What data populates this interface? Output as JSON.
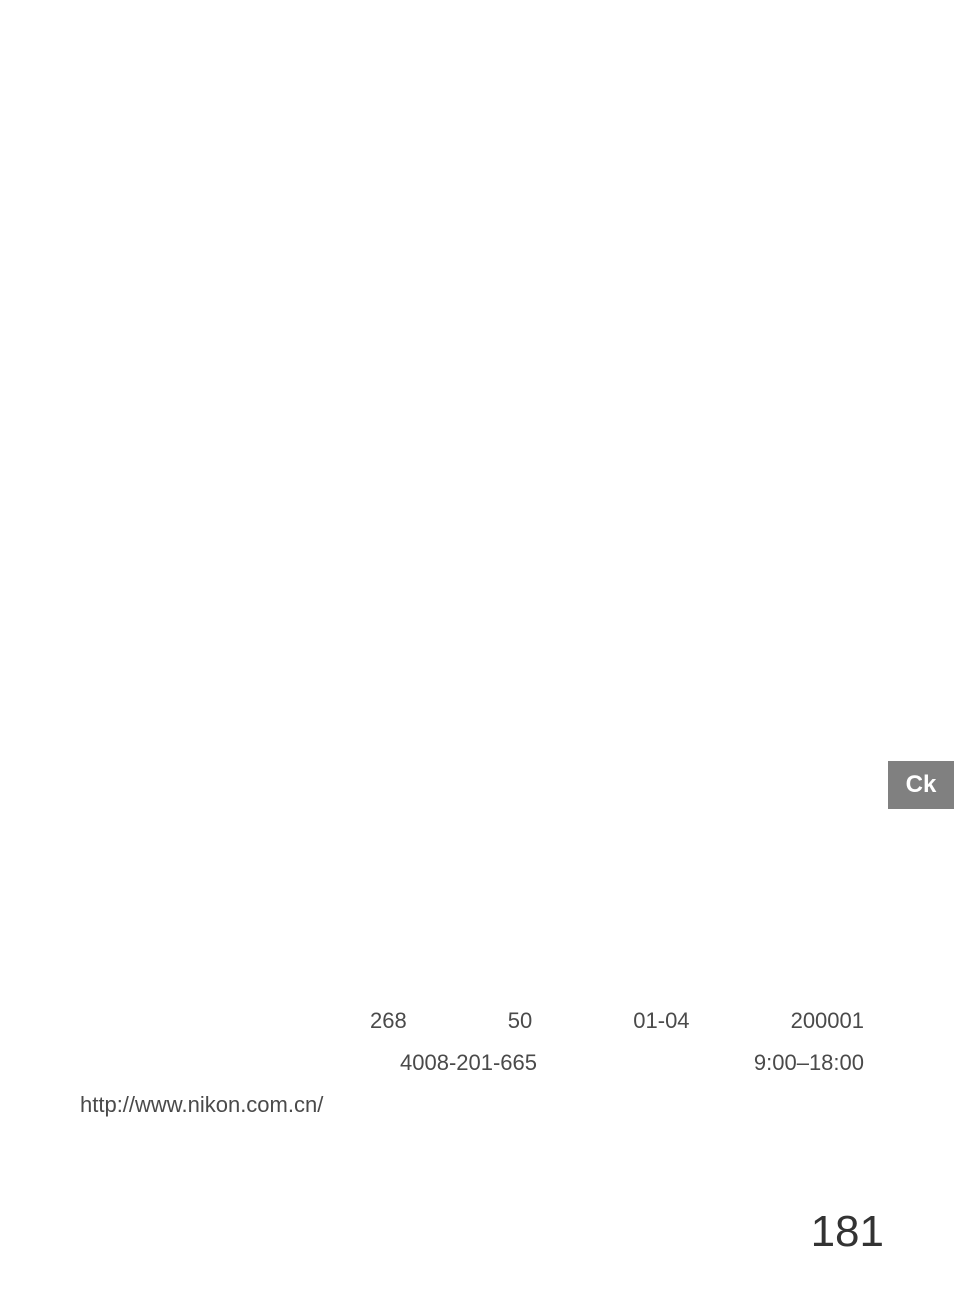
{
  "tab": {
    "label": "Ck",
    "background_color": "#808080",
    "text_color": "#ffffff",
    "fontsize": 24
  },
  "contact": {
    "line1": {
      "num1": "268",
      "num2": "50",
      "num3": "01-04",
      "postal": "200001"
    },
    "line2": {
      "phone": "4008-201-665",
      "hours": "9:00–18:00"
    },
    "url": "http://www.nikon.com.cn/",
    "text_color": "#4a4a4a",
    "fontsize": 22
  },
  "page_number": "181",
  "page_number_fontsize": 44,
  "background_color": "#ffffff"
}
